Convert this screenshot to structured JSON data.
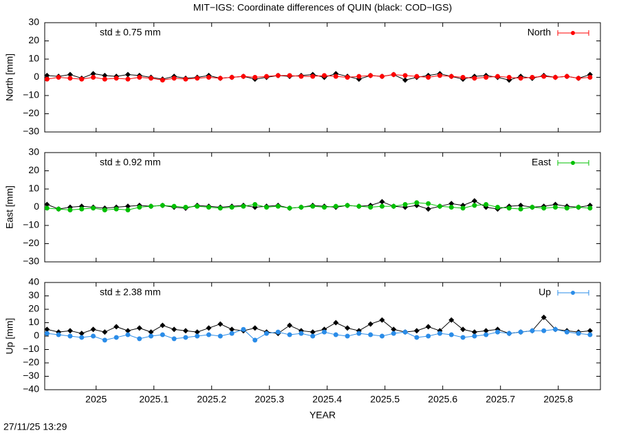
{
  "title": "MIT−IGS: Coordinate differences of QUIN (black: COD−IGS)",
  "timestamp": "27/11/25 13:29",
  "chart_data": [
    {
      "type": "line",
      "ylabel": "North [mm]",
      "annotation": "std ± 0.75 mm",
      "annotation_color": "#ff0000",
      "xlim": [
        2024.911,
        2025.873
      ],
      "xticks": [
        2025,
        2025.1,
        2025.2,
        2025.3,
        2025.4,
        2025.5,
        2025.6,
        2025.7,
        2025.8
      ],
      "ylim": [
        -30,
        30
      ],
      "yticks": [
        {
          "value": -30,
          "label": "−30"
        },
        {
          "value": -20,
          "label": "−20"
        },
        {
          "value": -10,
          "label": "−10"
        },
        0,
        10,
        20,
        30
      ],
      "x": [
        2024.915,
        2024.935,
        2024.955,
        2024.975,
        2024.995,
        2025.015,
        2025.035,
        2025.055,
        2025.075,
        2025.095,
        2025.115,
        2025.135,
        2025.155,
        2025.175,
        2025.195,
        2025.215,
        2025.235,
        2025.255,
        2025.275,
        2025.295,
        2025.315,
        2025.335,
        2025.355,
        2025.375,
        2025.395,
        2025.415,
        2025.435,
        2025.455,
        2025.475,
        2025.495,
        2025.515,
        2025.535,
        2025.555,
        2025.575,
        2025.595,
        2025.615,
        2025.635,
        2025.655,
        2025.675,
        2025.695,
        2025.715,
        2025.735,
        2025.755,
        2025.775,
        2025.795,
        2025.815,
        2025.835,
        2025.855
      ],
      "series": [
        {
          "color": "#000000",
          "values": [
            1,
            0.5,
            1.5,
            -0.5,
            2,
            1,
            0.5,
            1.5,
            1,
            0,
            -1,
            0.5,
            -0.5,
            0,
            1,
            -0.5,
            0,
            0.5,
            -1,
            0,
            1,
            0.5,
            1,
            1.5,
            0,
            2,
            0.5,
            -1,
            1,
            0.5,
            1.5,
            -1.5,
            0,
            1,
            2,
            0.5,
            -1,
            0.5,
            1,
            0,
            -1.5,
            0.5,
            -0.5,
            1,
            0,
            0.5,
            -0.5,
            1.5
          ]
        },
        {
          "name": "North",
          "color": "#ff0000",
          "values": [
            -1,
            0,
            -0.5,
            -1,
            0,
            -1,
            -0.5,
            -1,
            0,
            -0.5,
            -1.5,
            -0.5,
            -1,
            -0.5,
            0,
            -0.5,
            0,
            0.5,
            0,
            0.5,
            1,
            1,
            0.5,
            0.5,
            1,
            0.5,
            0,
            0.5,
            1,
            0.5,
            1.5,
            1,
            0.5,
            0,
            1,
            0.5,
            0,
            -0.5,
            0,
            0.5,
            0,
            -0.5,
            0,
            0.5,
            0,
            0.5,
            -0.5,
            0
          ]
        }
      ]
    },
    {
      "type": "line",
      "ylabel": "East [mm]",
      "annotation": "std ± 0.92 mm",
      "annotation_color": "#00c000",
      "xlim": [
        2024.911,
        2025.873
      ],
      "xticks": [
        2025,
        2025.1,
        2025.2,
        2025.3,
        2025.4,
        2025.5,
        2025.6,
        2025.7,
        2025.8
      ],
      "ylim": [
        -30,
        30
      ],
      "yticks": [
        {
          "value": -30,
          "label": "−30"
        },
        {
          "value": -20,
          "label": "−20"
        },
        {
          "value": -10,
          "label": "−10"
        },
        0,
        10,
        20,
        30
      ],
      "x": [
        2024.915,
        2024.935,
        2024.955,
        2024.975,
        2024.995,
        2025.015,
        2025.035,
        2025.055,
        2025.075,
        2025.095,
        2025.115,
        2025.135,
        2025.155,
        2025.175,
        2025.195,
        2025.215,
        2025.235,
        2025.255,
        2025.275,
        2025.295,
        2025.315,
        2025.335,
        2025.355,
        2025.375,
        2025.395,
        2025.415,
        2025.435,
        2025.455,
        2025.475,
        2025.495,
        2025.515,
        2025.535,
        2025.555,
        2025.575,
        2025.595,
        2025.615,
        2025.635,
        2025.655,
        2025.675,
        2025.695,
        2025.715,
        2025.735,
        2025.755,
        2025.775,
        2025.795,
        2025.815,
        2025.835,
        2025.855
      ],
      "series": [
        {
          "color": "#000000",
          "values": [
            1.5,
            -1,
            0,
            0.5,
            0,
            -0.5,
            0,
            0.5,
            1,
            0.5,
            1,
            0,
            -0.5,
            1,
            0.5,
            0,
            0.5,
            1,
            0,
            0.5,
            1,
            -0.5,
            0,
            1,
            0.5,
            0,
            1,
            0.5,
            1,
            3,
            0.5,
            0,
            1,
            -1,
            0.5,
            2,
            1,
            3.5,
            0,
            -1,
            0.5,
            1,
            0,
            0.5,
            1.5,
            0.5,
            0,
            1
          ]
        },
        {
          "name": "East",
          "color": "#00c000",
          "values": [
            -0.5,
            -1,
            -1.5,
            -1,
            -0.5,
            -1.5,
            -1,
            -1.5,
            0,
            0.5,
            1,
            0.5,
            0,
            0.5,
            0,
            -0.5,
            0,
            0.5,
            1.5,
            0,
            0.5,
            -0.5,
            0,
            0.5,
            0,
            0.5,
            1,
            0.5,
            0,
            0.5,
            0.5,
            1.5,
            2.5,
            2,
            0.5,
            0,
            -0.5,
            1,
            1.5,
            0,
            -0.5,
            -1,
            0,
            -0.5,
            0,
            -0.5,
            0,
            -0.5
          ]
        }
      ]
    },
    {
      "type": "line",
      "ylabel": "Up [mm]",
      "xlabel": "YEAR",
      "annotation": "std ± 2.38 mm",
      "annotation_color": "#2a8ce8",
      "xlim": [
        2024.911,
        2025.873
      ],
      "xticks": [
        2025,
        2025.1,
        2025.2,
        2025.3,
        2025.4,
        2025.5,
        2025.6,
        2025.7,
        2025.8
      ],
      "ylim": [
        -40,
        40
      ],
      "yticks": [
        {
          "value": -40,
          "label": "−40"
        },
        {
          "value": -30,
          "label": "−30"
        },
        {
          "value": -20,
          "label": "−20"
        },
        {
          "value": -10,
          "label": "−10"
        },
        0,
        10,
        20,
        30,
        40
      ],
      "x": [
        2024.915,
        2024.935,
        2024.955,
        2024.975,
        2024.995,
        2025.015,
        2025.035,
        2025.055,
        2025.075,
        2025.095,
        2025.115,
        2025.135,
        2025.155,
        2025.175,
        2025.195,
        2025.215,
        2025.235,
        2025.255,
        2025.275,
        2025.295,
        2025.315,
        2025.335,
        2025.355,
        2025.375,
        2025.395,
        2025.415,
        2025.435,
        2025.455,
        2025.475,
        2025.495,
        2025.515,
        2025.535,
        2025.555,
        2025.575,
        2025.595,
        2025.615,
        2025.635,
        2025.655,
        2025.675,
        2025.695,
        2025.715,
        2025.735,
        2025.755,
        2025.775,
        2025.795,
        2025.815,
        2025.835,
        2025.855
      ],
      "series": [
        {
          "color": "#000000",
          "values": [
            5,
            3,
            4,
            2,
            5,
            3,
            7,
            4,
            6,
            3,
            8,
            5,
            4,
            3,
            6,
            9,
            5,
            4,
            6,
            3,
            2,
            8,
            4,
            3,
            5,
            10,
            6,
            4,
            9,
            12,
            5,
            3,
            4,
            7,
            4,
            12,
            5,
            3,
            4,
            5,
            2,
            3,
            4,
            14,
            5,
            4,
            3,
            4
          ]
        },
        {
          "name": "Up",
          "color": "#2a8ce8",
          "values": [
            2,
            1,
            0,
            -1,
            0,
            -3,
            -1,
            1,
            -2,
            0,
            1,
            -2,
            -1,
            0,
            1,
            0,
            2,
            5,
            -3,
            2,
            3,
            1,
            2,
            0,
            3,
            1,
            0,
            2,
            1,
            0,
            2,
            3,
            -1,
            0,
            2,
            1,
            -1,
            0,
            1,
            3,
            2,
            3,
            4,
            4,
            5,
            3,
            2,
            1
          ]
        }
      ]
    }
  ]
}
